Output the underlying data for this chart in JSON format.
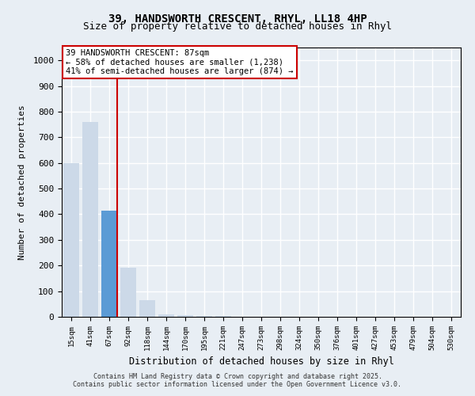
{
  "title_line1": "39, HANDSWORTH CRESCENT, RHYL, LL18 4HP",
  "title_line2": "Size of property relative to detached houses in Rhyl",
  "xlabel": "Distribution of detached houses by size in Rhyl",
  "ylabel": "Number of detached properties",
  "bar_values": [
    600,
    760,
    415,
    190,
    65,
    10,
    5,
    3,
    2,
    1,
    1,
    0,
    0,
    0,
    0,
    0,
    0,
    0,
    0,
    0,
    0
  ],
  "categories": [
    "15sqm",
    "41sqm",
    "67sqm",
    "92sqm",
    "118sqm",
    "144sqm",
    "170sqm",
    "195sqm",
    "221sqm",
    "247sqm",
    "273sqm",
    "298sqm",
    "324sqm",
    "350sqm",
    "376sqm",
    "401sqm",
    "427sqm",
    "453sqm",
    "479sqm",
    "504sqm",
    "530sqm"
  ],
  "bar_color": "#ccd9e8",
  "highlight_bar_index": 2,
  "highlight_bar_color": "#5b9bd5",
  "highlight_line_color": "#cc0000",
  "ylim": [
    0,
    1050
  ],
  "yticks": [
    0,
    100,
    200,
    300,
    400,
    500,
    600,
    700,
    800,
    900,
    1000
  ],
  "annotation_text": "39 HANDSWORTH CRESCENT: 87sqm\n← 58% of detached houses are smaller (1,238)\n41% of semi-detached houses are larger (874) →",
  "annotation_box_color": "#ffffff",
  "annotation_box_edge": "#cc0000",
  "footer_line1": "Contains HM Land Registry data © Crown copyright and database right 2025.",
  "footer_line2": "Contains public sector information licensed under the Open Government Licence v3.0.",
  "bg_color": "#e8eef4",
  "plot_bg_color": "#e8eef4",
  "grid_color": "#ffffff"
}
